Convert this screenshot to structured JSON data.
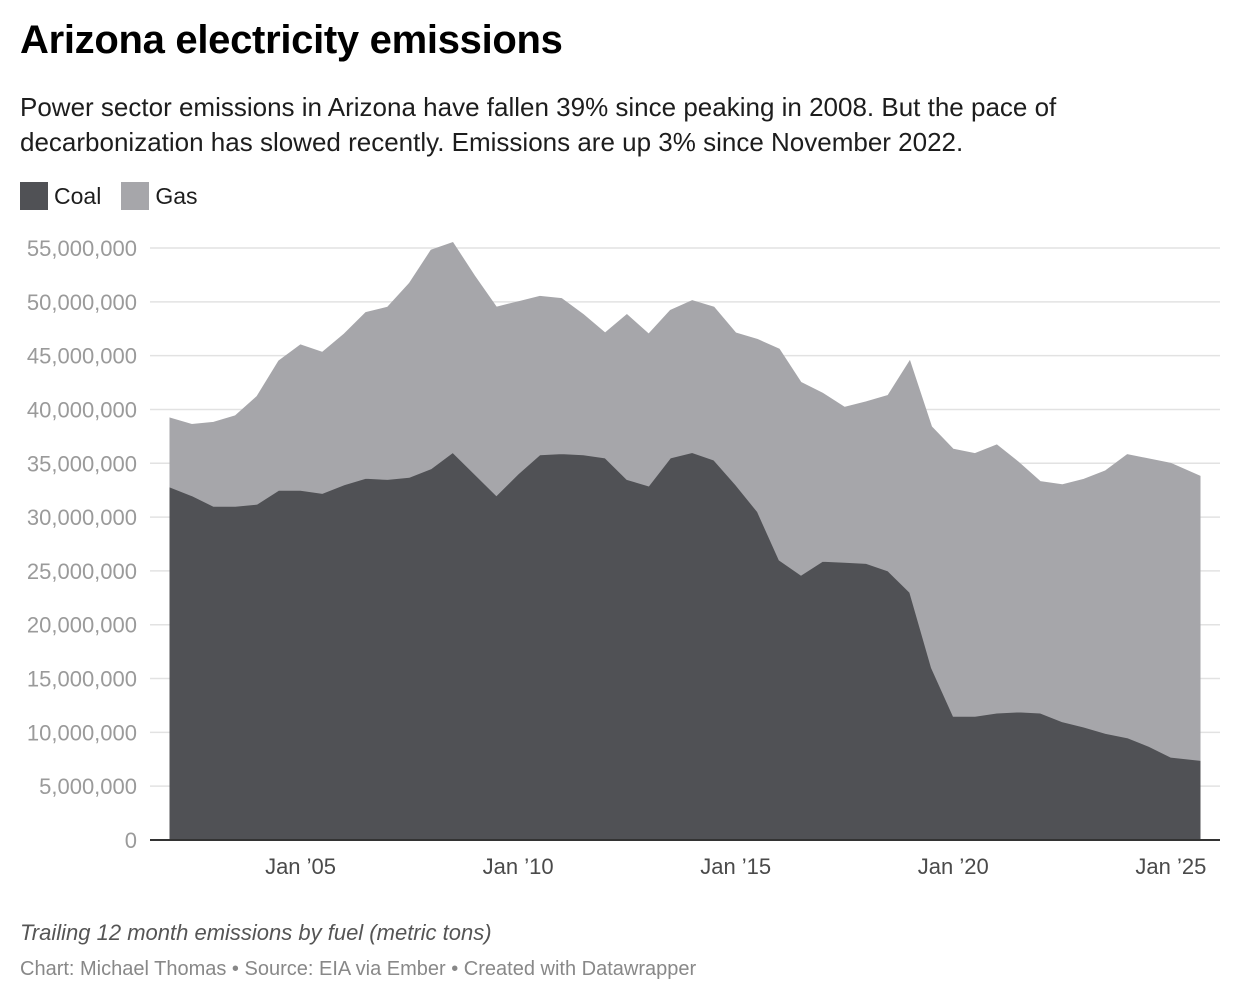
{
  "chart_data": {
    "type": "area",
    "stacked": true,
    "title": "Arizona electricity emissions",
    "subtitle": "Power sector emissions in Arizona have fallen 39% since peaking in 2008. But the pace of decarbonization has slowed recently. Emissions are up 3% since November 2022.",
    "xlabel": "",
    "ylabel": "",
    "x_tick_labels": [
      "Jan ’05",
      "Jan ’10",
      "Jan ’15",
      "Jan ’20",
      "Jan ’25"
    ],
    "x_tick_years": [
      2005,
      2010,
      2015,
      2020,
      2025
    ],
    "x_range": [
      2002.0,
      2025.67
    ],
    "y_tick_labels": [
      "0",
      "5,000,000",
      "10,000,000",
      "15,000,000",
      "20,000,000",
      "25,000,000",
      "30,000,000",
      "35,000,000",
      "40,000,000",
      "45,000,000",
      "50,000,000",
      "55,000,000"
    ],
    "y_tick_values": [
      0,
      5000000,
      10000000,
      15000000,
      20000000,
      25000000,
      30000000,
      35000000,
      40000000,
      45000000,
      50000000,
      55000000
    ],
    "ylim": [
      0,
      55000000
    ],
    "grid": true,
    "legend_position": "top-left",
    "x": [
      2002.0,
      2002.5,
      2003.0,
      2003.5,
      2004.0,
      2004.5,
      2005.0,
      2005.5,
      2006.0,
      2006.5,
      2007.0,
      2007.5,
      2008.0,
      2008.5,
      2009.0,
      2009.5,
      2010.0,
      2010.5,
      2011.0,
      2011.5,
      2012.0,
      2012.5,
      2013.0,
      2013.5,
      2014.0,
      2014.5,
      2015.0,
      2015.5,
      2016.0,
      2016.5,
      2017.0,
      2017.5,
      2018.0,
      2018.5,
      2019.0,
      2019.5,
      2020.0,
      2020.5,
      2021.0,
      2021.5,
      2022.0,
      2022.5,
      2023.0,
      2023.5,
      2024.0,
      2024.5,
      2025.0,
      2025.67
    ],
    "series": [
      {
        "name": "Coal",
        "color": "#505155",
        "values": [
          32800000,
          32000000,
          31000000,
          31000000,
          31200000,
          32500000,
          32500000,
          32200000,
          33000000,
          33600000,
          33500000,
          33700000,
          34500000,
          36000000,
          34000000,
          32000000,
          34000000,
          35800000,
          35900000,
          35800000,
          35500000,
          33500000,
          32900000,
          35500000,
          36000000,
          35300000,
          33000000,
          30500000,
          26000000,
          24600000,
          25900000,
          25800000,
          25700000,
          25000000,
          23000000,
          16000000,
          11500000,
          11500000,
          11800000,
          11900000,
          11800000,
          11000000,
          10500000,
          9900000,
          9500000,
          8700000,
          7700000,
          7400000
        ]
      },
      {
        "name": "Gas",
        "color": "#a6a6aa",
        "values": [
          6400000,
          6600000,
          7800000,
          8400000,
          10000000,
          12000000,
          13500000,
          13100000,
          14000000,
          15400000,
          16000000,
          18000000,
          20300000,
          19500000,
          18400000,
          17500000,
          16000000,
          14700000,
          14400000,
          13000000,
          11600000,
          15300000,
          14100000,
          13700000,
          14100000,
          14200000,
          14100000,
          16000000,
          19600000,
          17900000,
          15600000,
          14400000,
          15000000,
          16300000,
          21500000,
          22400000,
          24800000,
          24400000,
          24900000,
          23200000,
          21500000,
          22000000,
          23000000,
          24400000,
          26300000,
          26700000,
          27300000,
          26400000
        ]
      }
    ]
  },
  "footnote": "Trailing 12 month emissions by fuel (metric tons)",
  "credits": "Chart: Michael Thomas • Source: EIA via Ember • Created with Datawrapper",
  "colors": {
    "coal": "#505155",
    "gas": "#a6a6aa",
    "grid": "#e2e2e2",
    "axis": "#333333"
  }
}
